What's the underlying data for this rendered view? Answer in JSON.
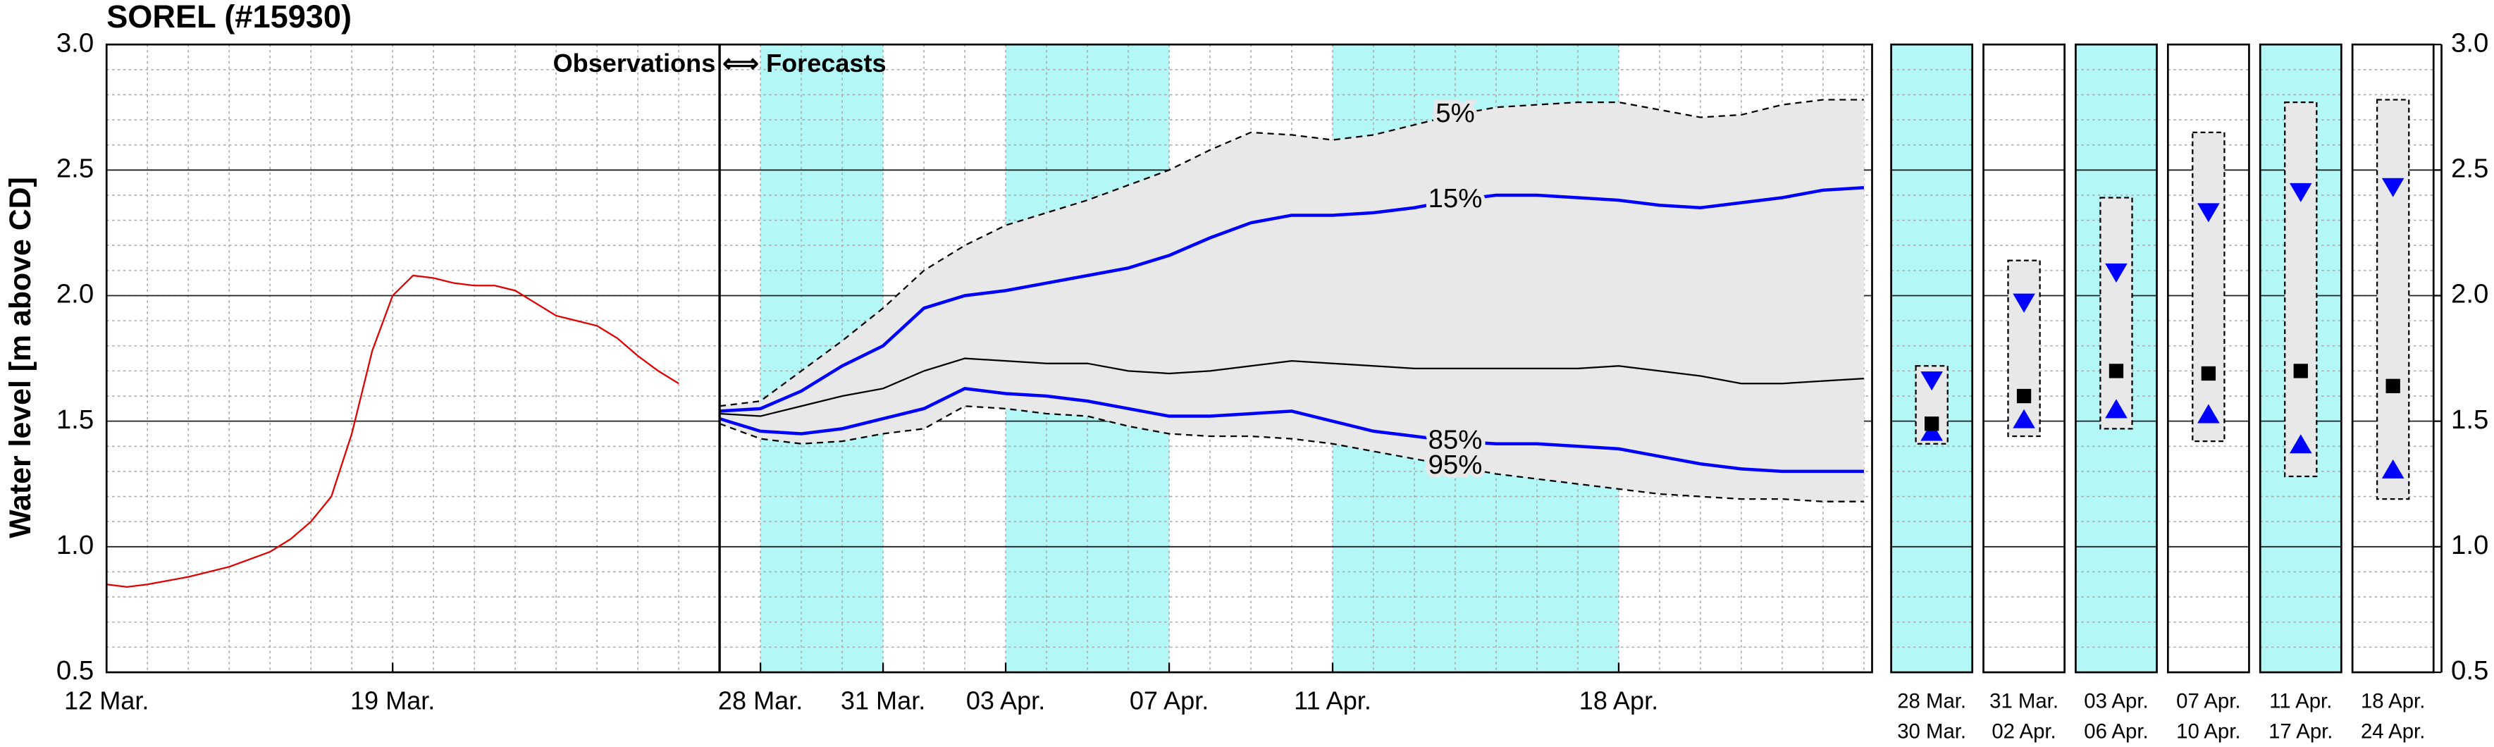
{
  "chart_data": [
    {
      "type": "line",
      "title": "SOREL (#15930)",
      "ylabel": "Water level [m above CD]",
      "annotation": "Observations ⟺ Forecasts",
      "forecast_start": 15,
      "xlim": [
        0,
        43.2
      ],
      "xticks": [
        {
          "value": 0,
          "label": "12 Mar."
        },
        {
          "value": 7,
          "label": "19 Mar."
        },
        {
          "value": 16,
          "label": "28 Mar."
        },
        {
          "value": 19,
          "label": "31 Mar."
        },
        {
          "value": 22,
          "label": "03 Apr."
        },
        {
          "value": 26,
          "label": "07 Apr."
        },
        {
          "value": 30,
          "label": "11 Apr."
        },
        {
          "value": 37,
          "label": "18 Apr."
        }
      ],
      "ylim": [
        0.5,
        3.0
      ],
      "yticks": [
        0.5,
        {
          "value": 1,
          "label": "1.0"
        },
        1.5,
        {
          "value": 2,
          "label": "2.0"
        },
        2.5,
        {
          "value": 3,
          "label": "3.0"
        }
      ],
      "grid": true,
      "xminor": 1,
      "yminor": 0.1,
      "bands": [
        [
          16,
          19
        ],
        [
          22,
          26
        ],
        [
          30,
          37
        ]
      ],
      "band_color": "#b3f7f7",
      "fill_between": [
        0,
        4
      ],
      "fill_color": "#e8e8e8",
      "series": [
        {
          "name": "5%",
          "color": "#000000",
          "dash": true,
          "width": 1,
          "x": [
            15,
            16,
            17,
            18,
            19,
            20,
            21,
            22,
            23,
            24,
            25,
            26,
            27,
            28,
            29,
            30,
            31,
            32,
            33,
            34,
            35,
            36,
            37,
            38,
            39,
            40,
            41,
            42,
            43
          ],
          "values": [
            1.56,
            1.58,
            1.7,
            1.82,
            1.95,
            2.1,
            2.2,
            2.28,
            2.33,
            2.38,
            2.44,
            2.5,
            2.58,
            2.65,
            2.64,
            2.62,
            2.64,
            2.68,
            2.72,
            2.75,
            2.76,
            2.77,
            2.77,
            2.74,
            2.71,
            2.72,
            2.76,
            2.78,
            2.78
          ]
        },
        {
          "name": "15%",
          "color": "#0000ff",
          "dash": false,
          "width": 2,
          "x": [
            15,
            16,
            17,
            18,
            19,
            20,
            21,
            22,
            23,
            24,
            25,
            26,
            27,
            28,
            29,
            30,
            31,
            32,
            33,
            34,
            35,
            36,
            37,
            38,
            39,
            40,
            41,
            42,
            43
          ],
          "values": [
            1.54,
            1.55,
            1.62,
            1.72,
            1.8,
            1.95,
            2.0,
            2.02,
            2.05,
            2.08,
            2.11,
            2.16,
            2.23,
            2.29,
            2.32,
            2.32,
            2.33,
            2.35,
            2.38,
            2.4,
            2.4,
            2.39,
            2.38,
            2.36,
            2.35,
            2.37,
            2.39,
            2.42,
            2.43
          ]
        },
        {
          "color": "#000000",
          "dash": false,
          "width": 1,
          "x": [
            15,
            16,
            17,
            18,
            19,
            20,
            21,
            22,
            23,
            24,
            25,
            26,
            27,
            28,
            29,
            30,
            31,
            32,
            33,
            34,
            35,
            36,
            37,
            38,
            39,
            40,
            41,
            42,
            43
          ],
          "values": [
            1.53,
            1.52,
            1.56,
            1.6,
            1.63,
            1.7,
            1.75,
            1.74,
            1.73,
            1.73,
            1.7,
            1.69,
            1.7,
            1.72,
            1.74,
            1.73,
            1.72,
            1.71,
            1.71,
            1.71,
            1.71,
            1.71,
            1.72,
            1.7,
            1.68,
            1.65,
            1.65,
            1.66,
            1.67
          ]
        },
        {
          "name": "85%",
          "color": "#0000ff",
          "dash": false,
          "width": 2,
          "x": [
            15,
            16,
            17,
            18,
            19,
            20,
            21,
            22,
            23,
            24,
            25,
            26,
            27,
            28,
            29,
            30,
            31,
            32,
            33,
            34,
            35,
            36,
            37,
            38,
            39,
            40,
            41,
            42,
            43
          ],
          "values": [
            1.51,
            1.46,
            1.45,
            1.47,
            1.51,
            1.55,
            1.63,
            1.61,
            1.6,
            1.58,
            1.55,
            1.52,
            1.52,
            1.53,
            1.54,
            1.5,
            1.46,
            1.44,
            1.42,
            1.41,
            1.41,
            1.4,
            1.39,
            1.36,
            1.33,
            1.31,
            1.3,
            1.3,
            1.3
          ]
        },
        {
          "name": "95%",
          "color": "#000000",
          "dash": true,
          "width": 1,
          "x": [
            15,
            16,
            17,
            18,
            19,
            20,
            21,
            22,
            23,
            24,
            25,
            26,
            27,
            28,
            29,
            30,
            31,
            32,
            33,
            34,
            35,
            36,
            37,
            38,
            39,
            40,
            41,
            42,
            43
          ],
          "values": [
            1.49,
            1.43,
            1.41,
            1.42,
            1.45,
            1.47,
            1.56,
            1.55,
            1.53,
            1.52,
            1.48,
            1.45,
            1.44,
            1.44,
            1.43,
            1.41,
            1.38,
            1.35,
            1.32,
            1.29,
            1.27,
            1.25,
            1.23,
            1.21,
            1.2,
            1.19,
            1.19,
            1.18,
            1.18
          ]
        },
        {
          "color": "#e00000",
          "dash": false,
          "width": 1,
          "x": [
            0,
            0.5,
            1,
            2,
            3,
            4,
            4.5,
            5,
            5.5,
            6,
            6.5,
            7,
            7.5,
            8,
            8.5,
            9,
            9.5,
            10,
            10.5,
            11,
            11.5,
            12,
            12.5,
            13,
            13.5,
            14
          ],
          "values": [
            0.85,
            0.84,
            0.85,
            0.88,
            0.92,
            0.98,
            1.03,
            1.1,
            1.2,
            1.45,
            1.78,
            2.0,
            2.08,
            2.07,
            2.05,
            2.04,
            2.04,
            2.02,
            1.97,
            1.92,
            1.9,
            1.88,
            1.83,
            1.76,
            1.7,
            1.65
          ]
        }
      ]
    },
    {
      "type": "range_summary",
      "categories": [
        [
          "28 Mar.",
          "30 Mar."
        ],
        [
          "31 Mar.",
          "02 Apr."
        ],
        [
          "03 Apr.",
          "06 Apr."
        ],
        [
          "07 Apr.",
          "10 Apr."
        ],
        [
          "11 Apr.",
          "17 Apr."
        ],
        [
          "18 Apr.",
          "24 Apr."
        ]
      ],
      "highlight": [
        true,
        false,
        true,
        false,
        true,
        false
      ],
      "band_color": "#b3f7f7",
      "ylim": [
        0.5,
        3.0
      ],
      "yticks": [
        0.5,
        {
          "value": 1,
          "label": "1.0"
        },
        1.5,
        {
          "value": 2,
          "label": "2.0"
        },
        2.5,
        {
          "value": 3,
          "label": "3.0"
        }
      ],
      "yminor": 0.1,
      "box_color": "#e8e8e8",
      "upper": [
        1.72,
        2.14,
        2.39,
        2.65,
        2.77,
        2.78
      ],
      "lower": [
        1.41,
        1.44,
        1.47,
        1.42,
        1.28,
        1.19
      ],
      "series": [
        {
          "marker": "triangle-down",
          "color": "#0000ff",
          "values": [
            1.66,
            1.97,
            2.09,
            2.33,
            2.41,
            2.43
          ]
        },
        {
          "marker": "triangle-up",
          "color": "#0000ff",
          "values": [
            1.46,
            1.51,
            1.55,
            1.53,
            1.41,
            1.31
          ]
        },
        {
          "marker": "square",
          "color": "#000000",
          "values": [
            1.49,
            1.6,
            1.7,
            1.69,
            1.7,
            1.64
          ]
        }
      ]
    }
  ]
}
